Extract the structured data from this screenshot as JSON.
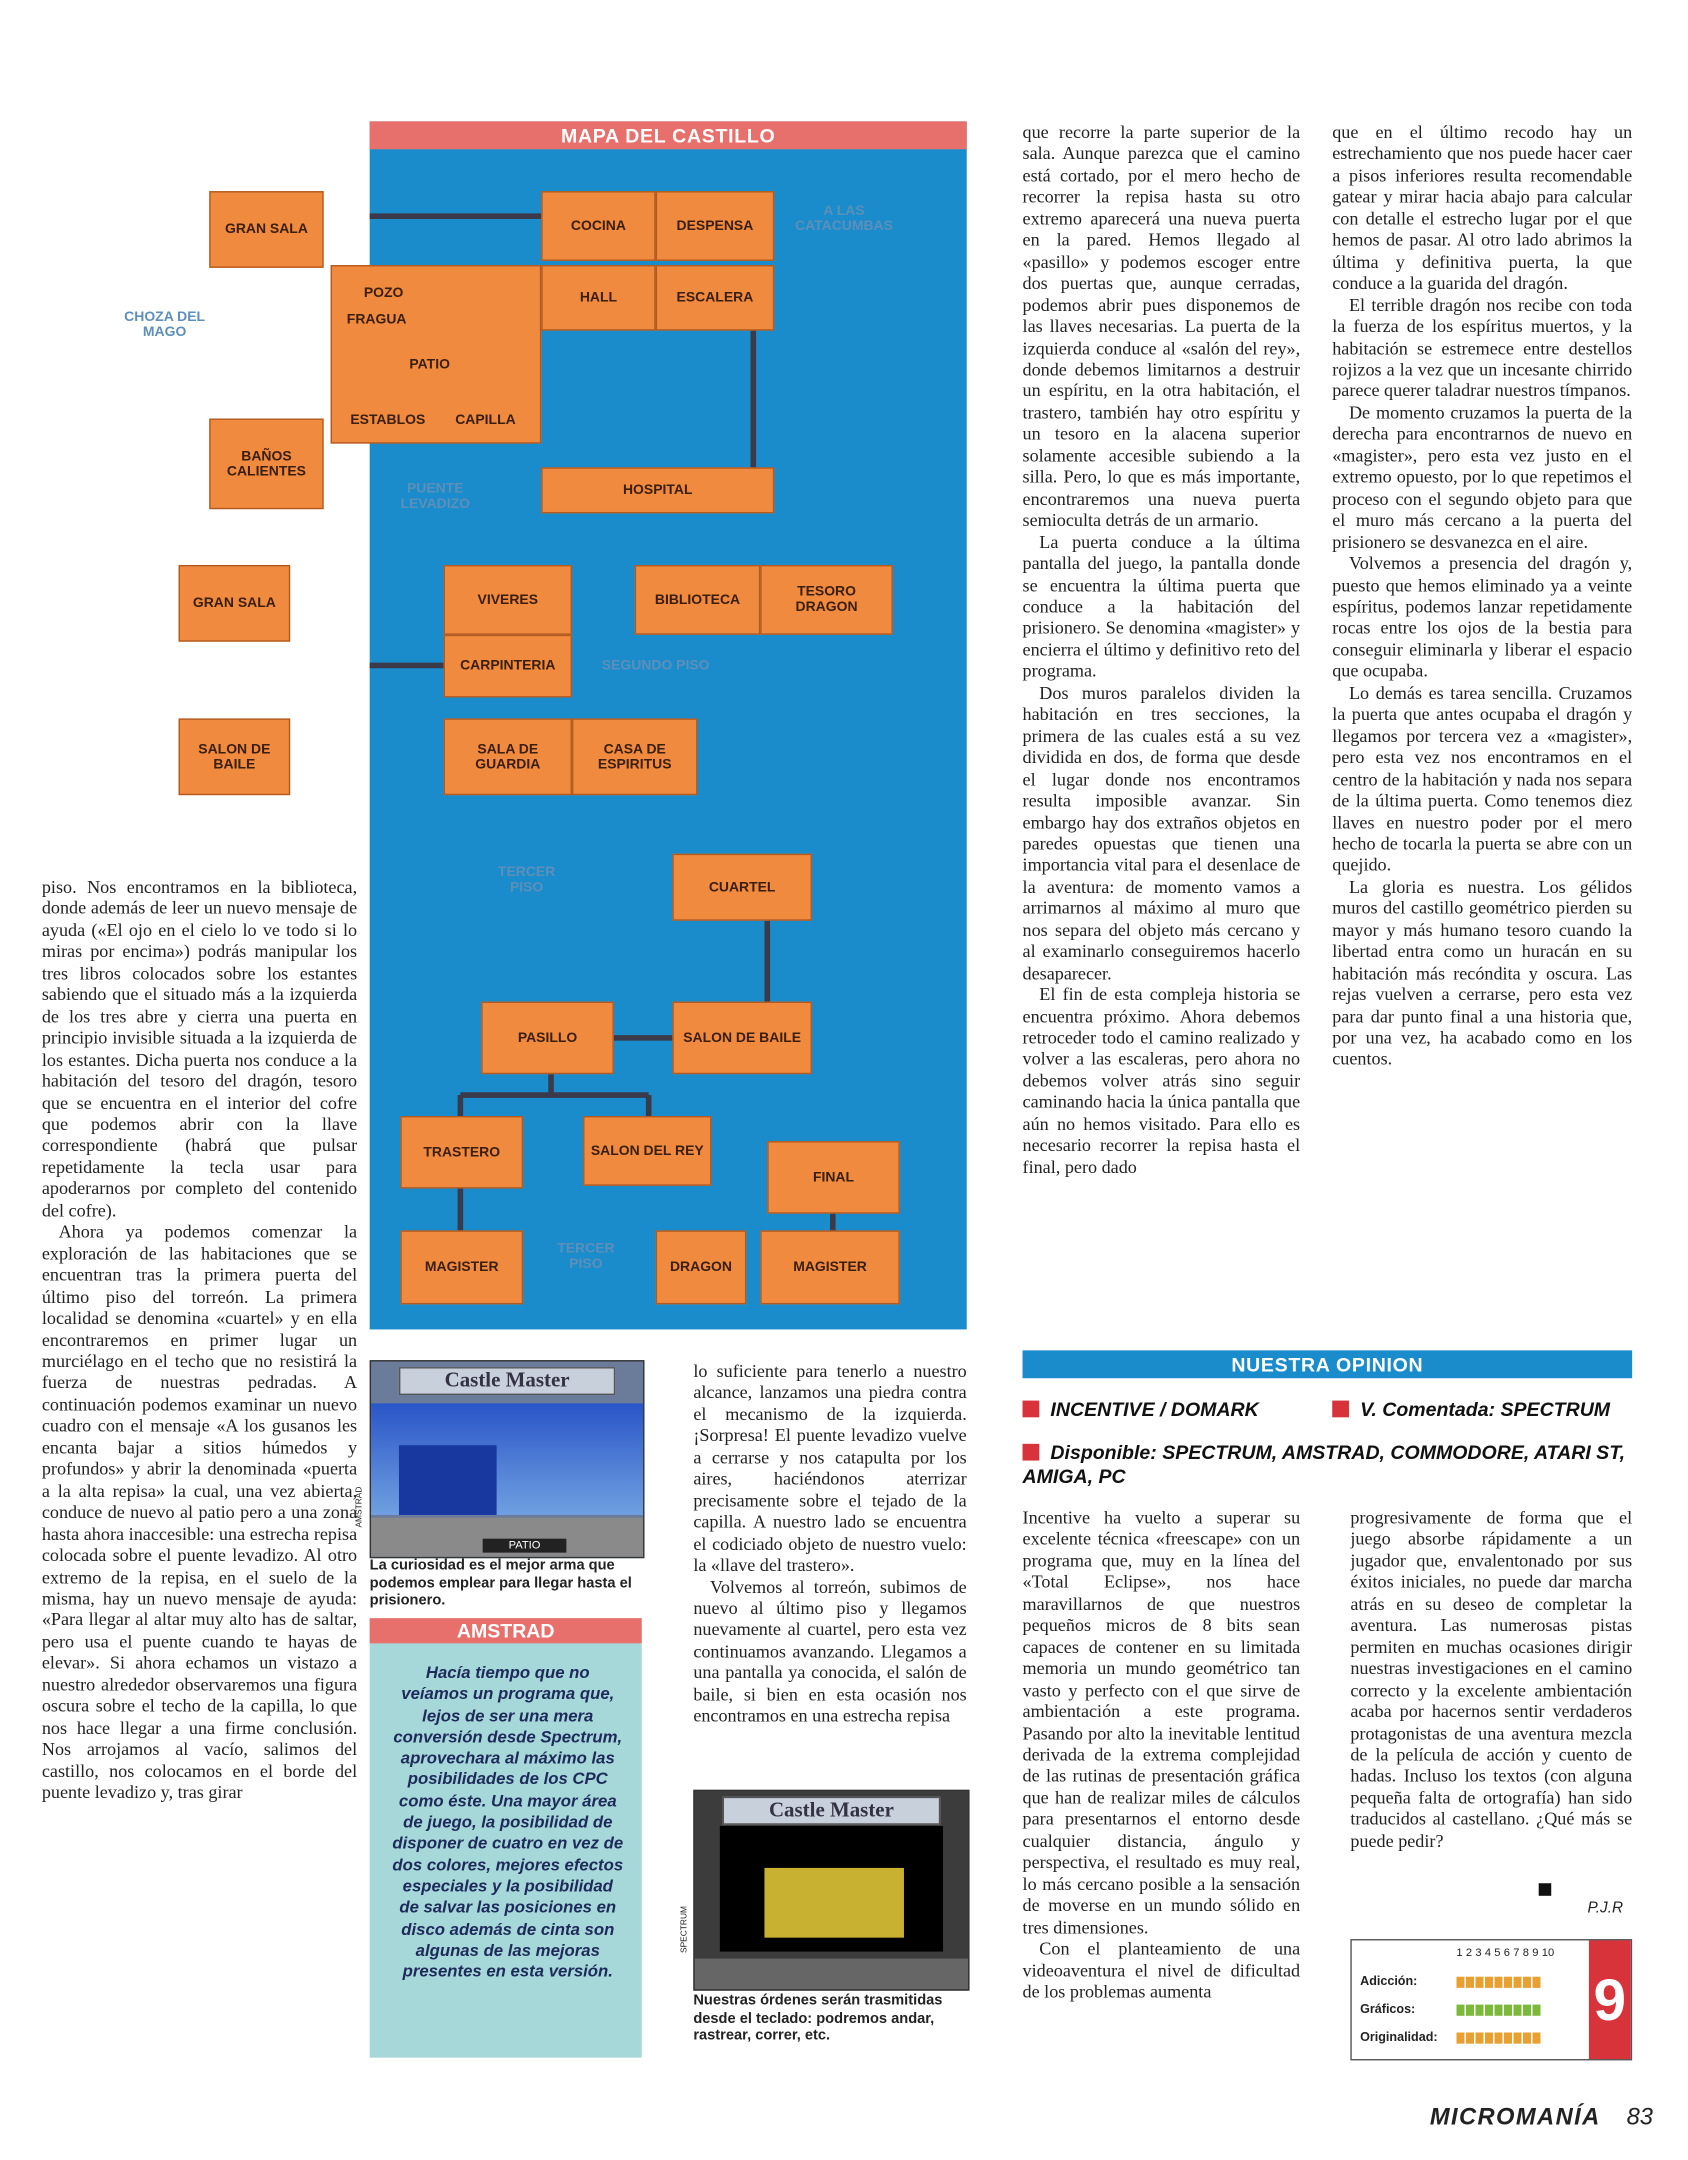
{
  "map": {
    "title": "MAPA DEL CASTILLO",
    "rooms": [
      "GRAN SALA",
      "COCINA",
      "DESPENSA",
      "HALL",
      "ESCALERA",
      "BAÑOS CALIENTES",
      "HOSPITAL",
      "GRAN SALA",
      "VIVERES",
      "CARPINTERIA",
      "BIBLIOTECA",
      "TESORO DRAGON",
      "SALON DE BAILE",
      "SALA DE GUARDIA",
      "CASA DE ESPIRITUS",
      "CUARTEL",
      "PASILLO",
      "SALON DE BAILE",
      "TRASTERO",
      "SALON DEL REY",
      "FINAL",
      "MAGISTER",
      "DRAGON",
      "MAGISTER"
    ],
    "labels": [
      "A LAS CATACUMBAS",
      "CHOZA DEL MAGO",
      "POZO",
      "FRAGUA",
      "PATIO",
      "ESTABLOS",
      "CAPILLA",
      "PUENTE LEVADIZO",
      "SEGUNDO PISO",
      "TERCER PISO",
      "TERCER PISO"
    ]
  },
  "left_column": [
    "piso. Nos encontramos en la biblioteca, donde además de leer un nuevo mensaje de ayuda («El ojo en el cielo lo ve todo si lo miras por encima») podrás manipular los tres libros colocados sobre los estantes sabiendo que el situado más a la izquierda de los tres abre y cierra una puerta en principio invisible situada a la izquierda de los estantes. Dicha puerta nos conduce a la habitación del tesoro del dragón, tesoro que se encuentra en el interior del cofre que podemos abrir con la llave correspondiente (habrá que pulsar repetidamente la tecla usar para apoderarnos por completo del contenido del cofre).",
    "Ahora ya podemos comenzar la exploración de las habitaciones que se encuentran tras la primera puerta del último piso del torreón. La primera localidad se denomina «cuartel» y en ella encontraremos en primer lugar un murciélago en el techo que no resistirá la fuerza de nuestras pedradas. A continuación podemos examinar un nuevo cuadro con el mensaje «A los gusanos les encanta bajar a sitios húmedos y profundos» y abrir la denominada «puerta a la alta repisa» la cual, una vez abierta, conduce de nuevo al patio pero a una zona hasta ahora inaccesible: una estrecha repisa colocada sobre el puente levadizo. Al otro extremo de la repisa, en el suelo de la misma, hay un nuevo mensaje de ayuda: «Para llegar al altar muy alto has de saltar, pero usa el puente cuando te hayas de elevar». Si ahora echamos un vistazo a nuestro alrededor observaremos una figura oscura sobre el techo de la capilla, lo que nos hace llegar a una firme conclusión. Nos arrojamos al vacío, salimos del castillo, nos colocamos en el borde del puente levadizo y, tras girar"
  ],
  "middle_column": [
    "lo suficiente para tenerlo a nuestro alcance, lanzamos una piedra contra el mecanismo de la izquierda. ¡Sorpresa! El puente levadizo vuelve a cerrarse y nos catapulta por los aires, haciéndonos aterrizar precisamente sobre el tejado de la capilla. A nuestro lado se encuentra el codiciado objeto de nuestro vuelo: la «llave del trastero».",
    "Volvemos al torreón, subimos de nuevo al último piso y llegamos nuevamente al cuartel, pero esta vez continuamos avanzando. Llegamos a una pantalla ya conocida, el salón de baile, si bien en esta ocasión nos encontramos en una estrecha repisa"
  ],
  "column_3": [
    "que recorre la parte superior de la sala. Aunque parezca que el camino está cortado, por el mero hecho de recorrer la repisa hasta su otro extremo aparecerá una nueva puerta en la pared. Hemos llegado al «pasillo» y podemos escoger entre dos puertas que, aunque cerradas, podemos abrir pues disponemos de las llaves necesarias. La puerta de la izquierda conduce al «salón del rey», donde debemos limitarnos a destruir un espíritu, en la otra habitación, el trastero, también hay otro espíritu y un tesoro en la alacena superior solamente accesible subiendo a la silla. Pero, lo que es más importante, encontraremos una nueva puerta semioculta detrás de un armario.",
    "La puerta conduce a la última pantalla del juego, la pantalla donde se encuentra la última puerta que conduce a la habitación del prisionero. Se denomina «magister» y encierra el último y definitivo reto del programa.",
    "Dos muros paralelos dividen la habitación en tres secciones, la primera de las cuales está a su vez dividida en dos, de forma que desde el lugar donde nos encontramos resulta imposible avanzar. Sin embargo hay dos extraños objetos en paredes opuestas que tienen una importancia vital para el desenlace de la aventura: de momento vamos a arrimarnos al máximo al muro que nos separa del objeto más cercano y al examinarlo conseguiremos hacerlo desaparecer.",
    "El fin de esta compleja historia se encuentra próximo. Ahora debemos retroceder todo el camino realizado y volver a las escaleras, pero ahora no debemos volver atrás sino seguir caminando hacia la única pantalla que aún no hemos visitado. Para ello es necesario recorrer la repisa hasta el final, pero dado"
  ],
  "column_4": [
    "que en el último recodo hay un estrechamiento que nos puede hacer caer a pisos inferiores resulta recomendable gatear y mirar hacia abajo para calcular con detalle el estrecho lugar por el que hemos de pasar. Al otro lado abrimos la última y definitiva puerta, la que conduce a la guarida del dragón.",
    "El terrible dragón nos recibe con toda la fuerza de los espíritus muertos, y la habitación se estremece entre destellos rojizos a la vez que un incesante chirrido parece querer taladrar nuestros tímpanos.",
    "De momento cruzamos la puerta de la derecha para encontrarnos de nuevo en «magister», pero esta vez justo en el extremo opuesto, por lo que repetimos el proceso con el segundo objeto para que el muro más cercano a la puerta del prisionero se desvanezca en el aire.",
    "Volvemos a presencia del dragón y, puesto que hemos eliminado ya a veinte espíritus, podemos lanzar repetidamente rocas entre los ojos de la bestia para conseguir eliminarla y liberar el espacio que ocupaba.",
    "Lo demás es tarea sencilla. Cruzamos la puerta que antes ocupaba el dragón y llegamos por tercera vez a «magister», pero esta vez nos encontramos en el centro de la habitación y nada nos separa de la última puerta. Como tenemos diez llaves en nuestro poder por el mero hecho de tocarla la puerta se abre con un quejido.",
    "La gloria es nuestra. Los gélidos muros del castillo geométrico pierden su mayor y más humano tesoro cuando la libertad entra como un huracán en su habitación más recóndita y oscura. Las rejas vuelven a cerrarse, pero esta vez para dar punto final a una historia que, por una vez, ha acabado como en los cuentos."
  ],
  "screenshots": [
    {
      "logo": "Castle Master",
      "label": "PATIO",
      "side": "AMSTRAD",
      "caption": "La curiosidad es el mejor arma que podemos emplear para llegar hasta el prisionero."
    },
    {
      "logo": "Castle Master",
      "side": "SPECTRUM",
      "caption": "Nuestras órdenes serán trasmitidas desde el teclado: podremos andar, rastrear, correr, etc."
    }
  ],
  "amstrad_box": {
    "title": "AMSTRAD",
    "text": "Hacía tiempo que no veíamos un programa que, lejos de ser una mera conversión desde Spectrum, aprovechara al máximo las posibilidades de los CPC como éste. Una mayor área de juego, la posibilidad de disponer de cuatro en vez de dos colores, mejores efectos especiales y la posibilidad de salvar las posiciones en disco además de cinta son algunas de las mejoras presentes en esta versión."
  },
  "opinion": {
    "title": "NUESTRA OPINION",
    "publisher": "INCENTIVE / DOMARK",
    "version": "V. Comentada: SPECTRUM",
    "available": "Disponible: SPECTRUM, AMSTRAD, COMMODORE, ATARI ST, AMIGA, PC",
    "column_1": [
      "Incentive ha vuelto a superar su excelente técnica «freescape» con un programa que, muy en la línea del «Total Eclipse», nos hace maravillarnos de que nuestros pequeños micros de 8 bits sean capaces de contener en su limitada memoria un mundo geométrico tan vasto y perfecto con el que sirve de ambientación a este programa. Pasando por alto la inevitable lentitud derivada de la extrema complejidad de las rutinas de presentación gráfica que han de realizar miles de cálculos para presentarnos el entorno desde cualquier distancia, ángulo y perspectiva, el resultado es muy real, lo más cercano posible a la sensación de moverse en un mundo sólido en tres dimensiones.",
      "Con el planteamiento de una videoaventura el nivel de dificultad de los problemas aumenta"
    ],
    "column_2": [
      "progresivamente de forma que el juego absorbe rápidamente a un jugador que, envalentonado por sus éxitos iniciales, no puede dar marcha atrás en su deseo de completar la aventura. Las numerosas pistas permiten en muchas ocasiones dirigir nuestras investigaciones en el camino correcto y la excelente ambientación acaba por hacernos sentir verdaderos protagonistas de una aventura mezcla de la película de acción y cuento de hadas. Incluso los textos (con alguna pequeña falta de ortografía) han sido traducidos al castellano. ¿Qué más se puede pedir?"
    ],
    "signature": "P.J.R",
    "ratings": {
      "scale": [
        1,
        2,
        3,
        4,
        5,
        6,
        7,
        8,
        9,
        10
      ],
      "rows": [
        {
          "label": "Adicción:",
          "value": 9
        },
        {
          "label": "Gráficos:",
          "value": 9
        },
        {
          "label": "Originalidad:",
          "value": 9
        }
      ],
      "total": 9
    }
  },
  "footer": {
    "magazine": "MICROMANÍA",
    "page": "83"
  }
}
